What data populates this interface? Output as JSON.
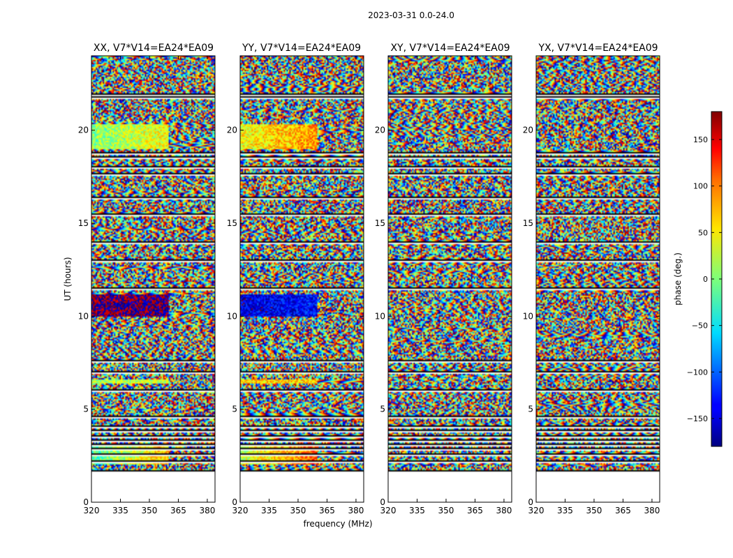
{
  "suptitle": "2023-03-31 0.0-24.0",
  "chart_data": {
    "type": "heatmap",
    "title": "2023-03-31 0.0-24.0",
    "xlabel": "frequency (MHz)",
    "ylabel": "UT (hours)",
    "xlim": [
      320,
      384
    ],
    "ylim": [
      0,
      24
    ],
    "x_ticks": [
      320,
      335,
      350,
      365,
      380
    ],
    "y_ticks": [
      0,
      5,
      10,
      15,
      20
    ],
    "data_start_hour": 1.65,
    "panels": [
      {
        "title": "XX, V7*V14=EA24*EA09",
        "pol": "XX"
      },
      {
        "title": "YY, V7*V14=EA24*EA09",
        "pol": "YY"
      },
      {
        "title": "XY, V7*V14=EA24*EA09",
        "pol": "XY"
      },
      {
        "title": "YX, V7*V14=EA24*EA09",
        "pol": "YX"
      }
    ],
    "colorbar": {
      "label": "phase (deg.)",
      "range": [
        -180,
        180
      ],
      "ticks": [
        -150,
        -100,
        -50,
        0,
        50,
        100,
        150
      ],
      "colormap": "jet"
    },
    "flagged_gap_hours": [
      21.9,
      21.75,
      18.75,
      18.55,
      18.0,
      17.6,
      16.35,
      15.45,
      13.95,
      12.95,
      11.5,
      7.6,
      6.95,
      6.0,
      4.6,
      4.05,
      3.8,
      3.55,
      3.3,
      3.05,
      2.85,
      2.55,
      2.2
    ],
    "coherent_bands_hours": [
      [
        19.0,
        20.3,
        180,
        0.2
      ],
      [
        10.0,
        11.15,
        355,
        0.05
      ],
      [
        6.35,
        6.6,
        200,
        0
      ],
      [
        2.0,
        3.0,
        160,
        0.4
      ]
    ]
  }
}
